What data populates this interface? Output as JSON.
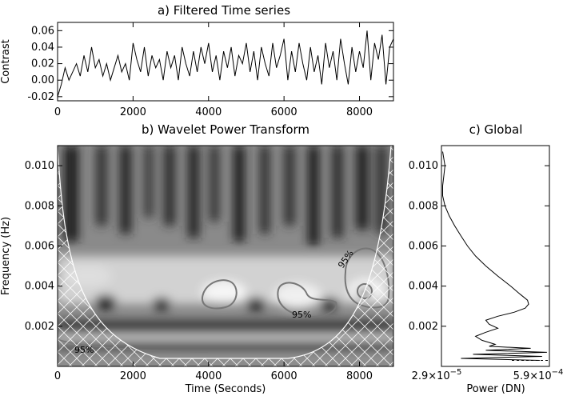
{
  "chart_data": [
    {
      "type": "line",
      "title": "a) Filtered Time series",
      "xlabel": "",
      "ylabel": "Contrast",
      "xlim": [
        0,
        8900
      ],
      "ylim": [
        -0.025,
        0.07
      ],
      "x_ticks": [
        "0",
        "2000",
        "4000",
        "6000",
        "8000"
      ],
      "y_ticks": [
        "-0.02",
        "0.00",
        "0.02",
        "0.04",
        "0.06"
      ],
      "series": [
        {
          "x": [
            0,
            100,
            200,
            300,
            400,
            500,
            600,
            700,
            800,
            900,
            1000,
            1100,
            1200,
            1300,
            1400,
            1500,
            1600,
            1700,
            1800,
            1900,
            2000,
            2100,
            2200,
            2300,
            2400,
            2500,
            2600,
            2700,
            2800,
            2900,
            3000,
            3100,
            3200,
            3300,
            3400,
            3500,
            3600,
            3700,
            3800,
            3900,
            4000,
            4100,
            4200,
            4300,
            4400,
            4500,
            4600,
            4700,
            4800,
            4900,
            5000,
            5100,
            5200,
            5300,
            5400,
            5500,
            5600,
            5700,
            5800,
            5900,
            6000,
            6100,
            6200,
            6300,
            6400,
            6500,
            6600,
            6700,
            6800,
            6900,
            7000,
            7100,
            7200,
            7300,
            7400,
            7500,
            7600,
            7700,
            7800,
            7900,
            8000,
            8100,
            8200,
            8300,
            8400,
            8500,
            8600,
            8700,
            8800,
            8900
          ],
          "values": [
            -0.02,
            -0.005,
            0.015,
            0.0,
            0.01,
            0.02,
            0.005,
            0.03,
            0.01,
            0.04,
            0.015,
            0.025,
            0.005,
            0.02,
            0.0,
            0.015,
            0.03,
            0.01,
            0.02,
            0.0,
            0.045,
            0.025,
            0.01,
            0.04,
            0.005,
            0.03,
            0.015,
            0.025,
            0.0,
            0.035,
            0.015,
            0.03,
            0.0,
            0.04,
            0.02,
            0.005,
            0.035,
            0.01,
            0.04,
            0.02,
            0.045,
            0.01,
            0.03,
            0.0,
            0.035,
            0.015,
            0.04,
            0.005,
            0.03,
            0.02,
            0.045,
            0.01,
            0.035,
            0.0,
            0.04,
            0.02,
            0.005,
            0.045,
            0.015,
            0.03,
            0.05,
            0.0,
            0.035,
            0.01,
            0.045,
            0.02,
            0.0,
            0.04,
            0.01,
            0.03,
            -0.005,
            0.045,
            0.015,
            0.035,
            0.0,
            0.05,
            0.02,
            -0.005,
            0.04,
            0.01,
            0.035,
            0.015,
            0.06,
            0.0,
            0.045,
            0.025,
            0.055,
            -0.005,
            0.04,
            0.05
          ]
        }
      ]
    },
    {
      "type": "heatmap",
      "title": "b) Wavelet Power Transform",
      "xlabel": "Time (Seconds)",
      "ylabel": "Frequency (Hz)",
      "xlim": [
        0,
        8900
      ],
      "ylim": [
        0,
        0.011
      ],
      "x_ticks": [
        "0",
        "2000",
        "4000",
        "6000",
        "8000"
      ],
      "y_ticks": [
        "0.002",
        "0.004",
        "0.006",
        "0.008",
        "0.010"
      ],
      "contour_labels": [
        "95%",
        "95%",
        "95%",
        "95%"
      ]
    },
    {
      "type": "line",
      "title": "c) Global",
      "xlabel": "Power (DN)",
      "ylabel": "",
      "x_scale": "log",
      "xlim": [
        2.9e-05,
        0.00059
      ],
      "ylim": [
        0,
        0.011
      ],
      "x_tick_labels": [
        {
          "base": "2.9×10",
          "exp": "−5"
        },
        {
          "base": "5.9×10",
          "exp": "−4"
        }
      ],
      "y_ticks": [
        "0.002",
        "0.004",
        "0.006",
        "0.008",
        "0.010"
      ],
      "series": [
        {
          "freq": [
            0.0107,
            0.01,
            0.0095,
            0.009,
            0.0085,
            0.008,
            0.0075,
            0.007,
            0.0065,
            0.006,
            0.0055,
            0.005,
            0.0045,
            0.004,
            0.0036,
            0.0033,
            0.0031,
            0.0029,
            0.0027,
            0.0025,
            0.0023,
            0.0021,
            0.0019,
            0.0017,
            0.0015,
            0.0013,
            0.0011,
            0.001,
            0.0009,
            0.0008,
            0.0007,
            0.0006,
            0.0005,
            0.0004,
            0.0003
          ],
          "power": [
            3e-05,
            3.2e-05,
            3.1e-05,
            3e-05,
            3e-05,
            3.2e-05,
            3.6e-05,
            4.2e-05,
            5e-05,
            6e-05,
            7.5e-05,
            0.0001,
            0.00014,
            0.0002,
            0.00026,
            0.00032,
            0.00033,
            0.0003,
            0.00022,
            0.00014,
            0.0001,
            0.00011,
            0.00014,
            0.0001,
            7.5e-05,
            9e-05,
            0.00013,
            0.00011,
            0.00035,
            0.0001,
            0.00055,
            7e-05,
            0.00048,
            5e-05,
            0.00045
          ]
        }
      ]
    }
  ]
}
